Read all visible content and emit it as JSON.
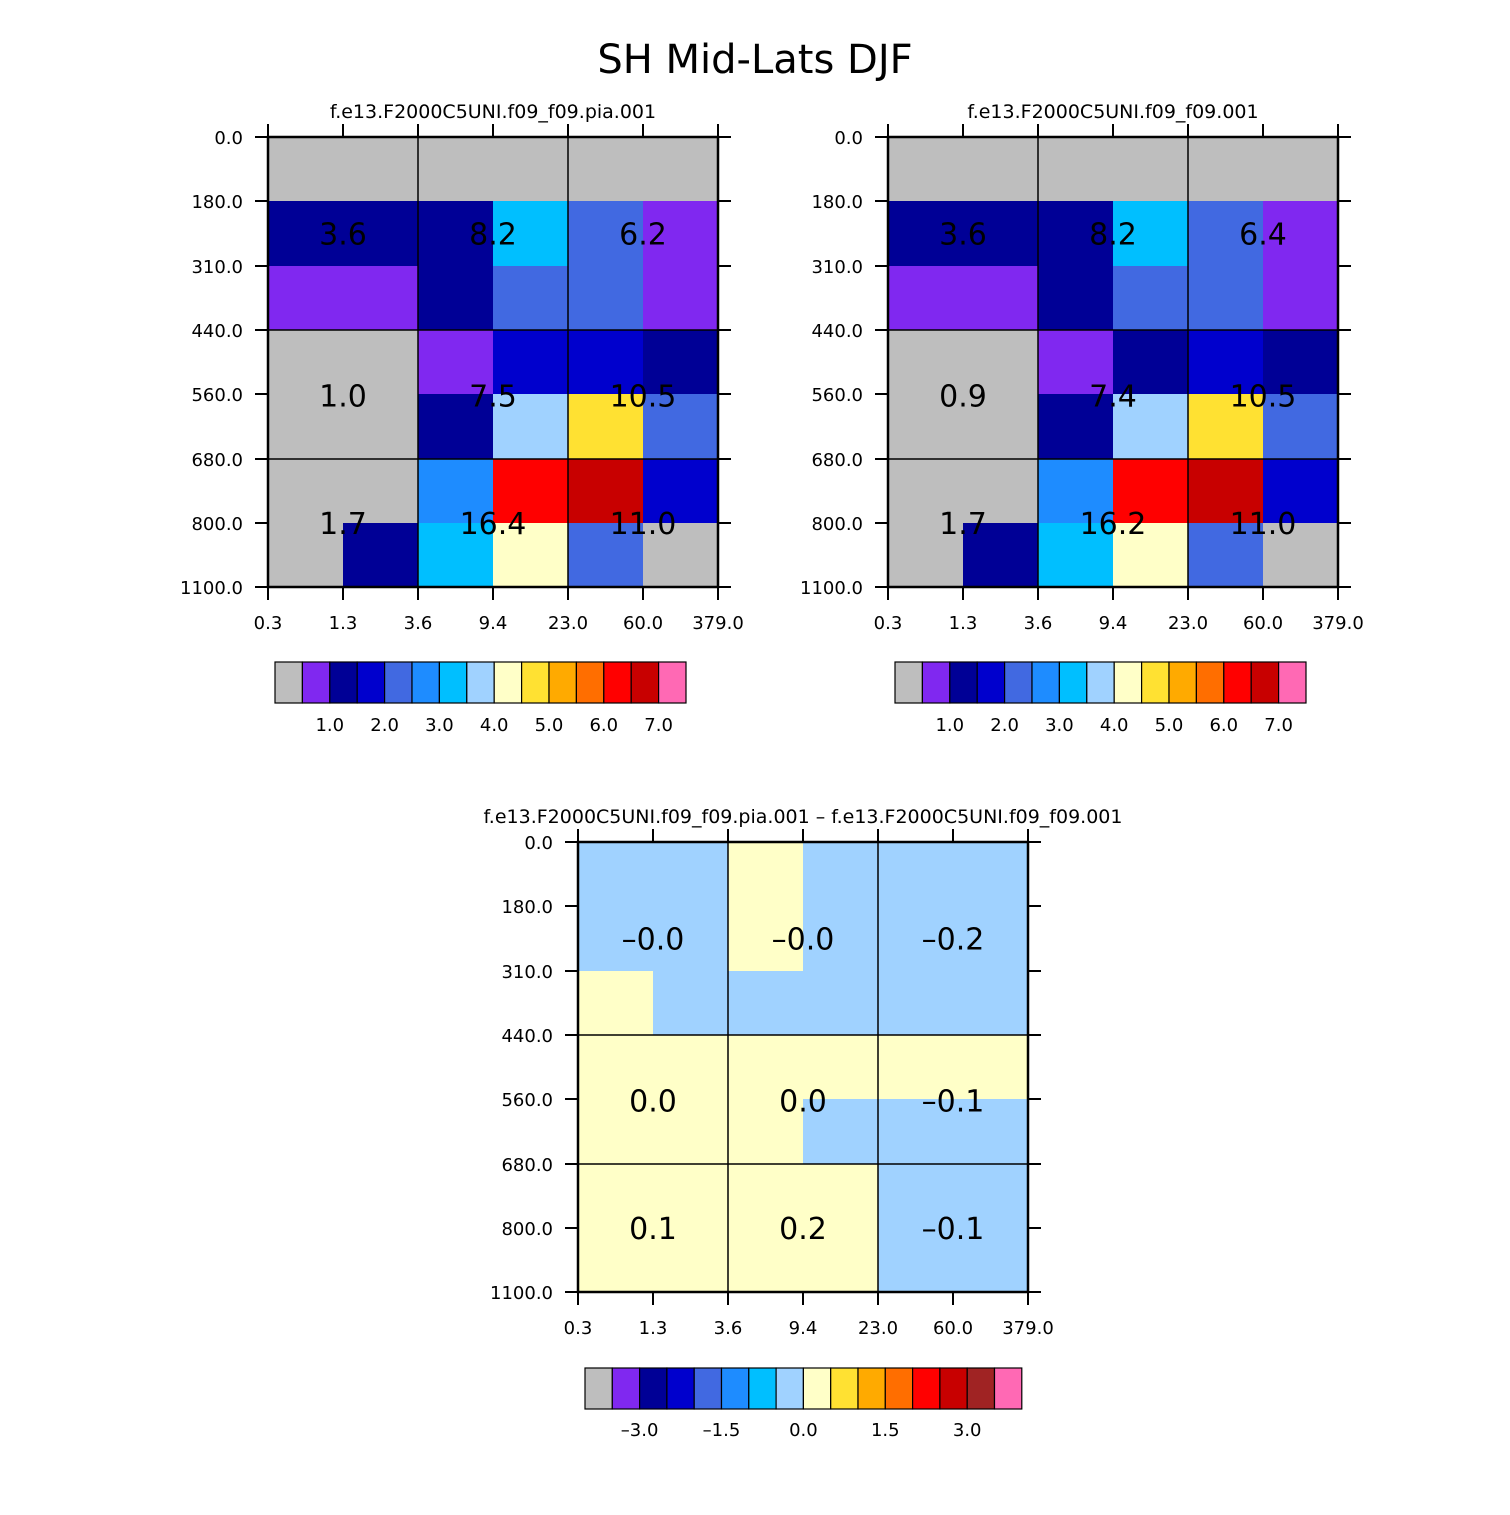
{
  "chart_data": {
    "type": "heatmap",
    "title": "SH Mid-Lats DJF",
    "x_ticks": [
      "0.3",
      "1.3",
      "3.6",
      "9.4",
      "23.0",
      "60.0",
      "379.0"
    ],
    "y_ticks": [
      "0.0",
      "180.0",
      "310.0",
      "440.0",
      "560.0",
      "680.0",
      "800.0",
      "1100.0"
    ],
    "colors": {
      "c0": "#bebebe",
      "c1": "#8028f0",
      "c2": "#000096",
      "c3": "#0000cd",
      "c4": "#4169e1",
      "c5": "#1e8cff",
      "c6": "#00bfff",
      "c7": "#a0d2ff",
      "c8": "#ffffc8",
      "c9": "#ffe132",
      "c10": "#ffaa00",
      "c11": "#ff6e00",
      "c12": "#ff0000",
      "c13": "#c80000",
      "c14": "#a02323",
      "c15": "#ff69b4"
    },
    "panels": [
      {
        "title": "f.e13.F2000C5UNI.f09_f09.pia.001",
        "grid": [
          [
            "c0",
            "c0",
            "c0",
            "c0",
            "c0",
            "c0"
          ],
          [
            "c2",
            "c2",
            "c2",
            "c6",
            "c4",
            "c1"
          ],
          [
            "c1",
            "c1",
            "c2",
            "c4",
            "c4",
            "c1"
          ],
          [
            "c0",
            "c0",
            "c1",
            "c3",
            "c3",
            "c2"
          ],
          [
            "c0",
            "c0",
            "c2",
            "c7",
            "c9",
            "c4"
          ],
          [
            "c0",
            "c0",
            "c5",
            "c12",
            "c13",
            "c3"
          ],
          [
            "c0",
            "c2",
            "c6",
            "c8",
            "c4",
            "c0"
          ]
        ],
        "labels": [
          [
            "3.6",
            "8.2",
            "6.2"
          ],
          [
            "1.0",
            "7.5",
            "10.5"
          ],
          [
            "1.7",
            "16.4",
            "11.0"
          ]
        ],
        "colorbar": {
          "boxes": [
            "c0",
            "c1",
            "c2",
            "c3",
            "c4",
            "c5",
            "c6",
            "c7",
            "c8",
            "c9",
            "c10",
            "c11",
            "c12",
            "c13",
            "c15"
          ],
          "labels": [
            "1.0",
            "2.0",
            "3.0",
            "4.0",
            "5.0",
            "6.0",
            "7.0"
          ]
        }
      },
      {
        "title": "f.e13.F2000C5UNI.f09_f09.001",
        "grid": [
          [
            "c0",
            "c0",
            "c0",
            "c0",
            "c0",
            "c0"
          ],
          [
            "c2",
            "c2",
            "c2",
            "c6",
            "c4",
            "c1"
          ],
          [
            "c1",
            "c1",
            "c2",
            "c4",
            "c4",
            "c1"
          ],
          [
            "c0",
            "c0",
            "c1",
            "c2",
            "c3",
            "c2"
          ],
          [
            "c0",
            "c0",
            "c2",
            "c7",
            "c9",
            "c4"
          ],
          [
            "c0",
            "c0",
            "c5",
            "c12",
            "c13",
            "c3"
          ],
          [
            "c0",
            "c2",
            "c6",
            "c8",
            "c4",
            "c0"
          ]
        ],
        "labels": [
          [
            "3.6",
            "8.2",
            "6.4"
          ],
          [
            "0.9",
            "7.4",
            "10.5"
          ],
          [
            "1.7",
            "16.2",
            "11.0"
          ]
        ],
        "colorbar": {
          "boxes": [
            "c0",
            "c1",
            "c2",
            "c3",
            "c4",
            "c5",
            "c6",
            "c7",
            "c8",
            "c9",
            "c10",
            "c11",
            "c12",
            "c13",
            "c15"
          ],
          "labels": [
            "1.0",
            "2.0",
            "3.0",
            "4.0",
            "5.0",
            "6.0",
            "7.0"
          ]
        }
      },
      {
        "title": "f.e13.F2000C5UNI.f09_f09.pia.001 – f.e13.F2000C5UNI.f09_f09.001",
        "grid": [
          [
            "c7",
            "c7",
            "c8",
            "c7",
            "c7",
            "c7"
          ],
          [
            "c7",
            "c7",
            "c8",
            "c7",
            "c7",
            "c7"
          ],
          [
            "c8",
            "c7",
            "c7",
            "c7",
            "c7",
            "c7"
          ],
          [
            "c8",
            "c8",
            "c8",
            "c8",
            "c8",
            "c8"
          ],
          [
            "c8",
            "c8",
            "c8",
            "c7",
            "c7",
            "c7"
          ],
          [
            "c8",
            "c8",
            "c8",
            "c8",
            "c7",
            "c7"
          ],
          [
            "c8",
            "c8",
            "c8",
            "c8",
            "c7",
            "c7"
          ]
        ],
        "labels": [
          [
            "–0.0",
            "–0.0",
            "–0.2"
          ],
          [
            "0.0",
            "0.0",
            "–0.1"
          ],
          [
            "0.1",
            "0.2",
            "–0.1"
          ]
        ],
        "colorbar": {
          "boxes": [
            "c0",
            "c1",
            "c2",
            "c3",
            "c4",
            "c5",
            "c6",
            "c7",
            "c8",
            "c9",
            "c10",
            "c11",
            "c12",
            "c13",
            "c14",
            "c15"
          ],
          "labels": [
            "–3.0",
            "–1.5",
            "0.0",
            "1.5",
            "3.0"
          ]
        }
      }
    ]
  }
}
